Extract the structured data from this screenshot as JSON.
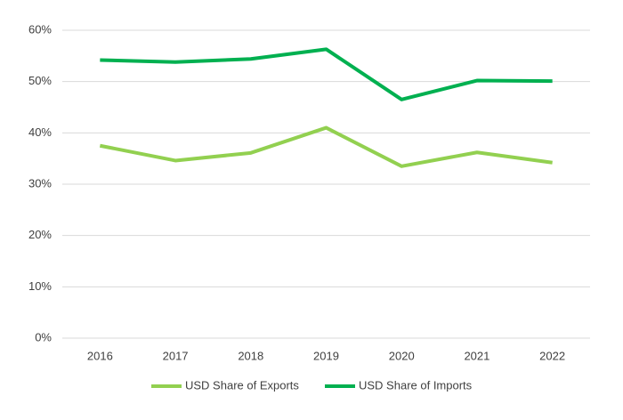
{
  "chart_data": {
    "type": "line",
    "categories": [
      "2016",
      "2017",
      "2018",
      "2019",
      "2020",
      "2021",
      "2022"
    ],
    "series": [
      {
        "name": "USD Share of Exports",
        "color": "#92d050",
        "values": [
          37.5,
          34.6,
          36.1,
          41.0,
          33.5,
          36.2,
          34.2
        ]
      },
      {
        "name": "USD Share of Imports",
        "color": "#00b050",
        "values": [
          54.2,
          53.8,
          54.4,
          56.3,
          46.5,
          50.2,
          50.1
        ]
      }
    ],
    "ylim": [
      0,
      60
    ],
    "yticks": [
      {
        "value": 0,
        "label": "0%"
      },
      {
        "value": 10,
        "label": "10%"
      },
      {
        "value": 20,
        "label": "20%"
      },
      {
        "value": 30,
        "label": "30%"
      },
      {
        "value": 40,
        "label": "40%"
      },
      {
        "value": 50,
        "label": "50%"
      },
      {
        "value": 60,
        "label": "60%"
      }
    ],
    "grid": true,
    "legend": "bottom"
  }
}
